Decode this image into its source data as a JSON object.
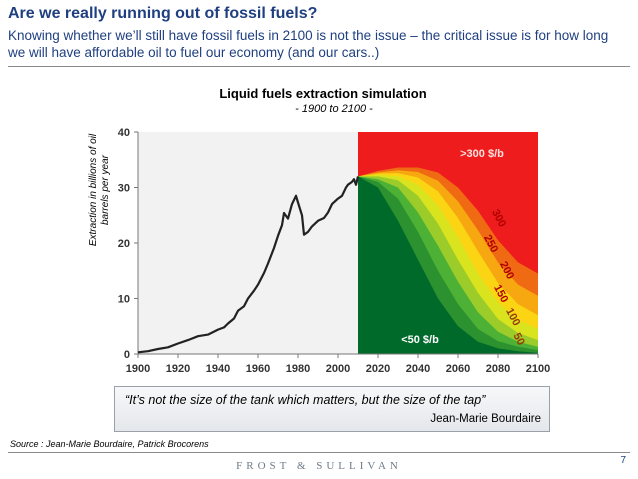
{
  "slide": {
    "title": "Are we really running out of fossil fuels?",
    "subtitle": "Knowing whether we’ll still have fossil fuels in 2100 is not the issue – the critical issue is for how long we will have affordable oil to fuel our economy (and our cars..)",
    "source": "Source : Jean-Marie Bourdaire, Patrick Brocorens",
    "footer_logo": "FROST & SULLIVAN",
    "page_number": "7"
  },
  "quote": {
    "text": "“It’s not the size of the tank which matters, but the size of the tap”",
    "author": "Jean-Marie Bourdaire"
  },
  "chart_data": {
    "type": "area",
    "title": "Liquid fuels extraction simulation",
    "subtitle": "- 1900 to 2100 -",
    "ylabel": "Extraction in billions of oil barrels per year",
    "xlim": [
      1900,
      2100
    ],
    "ylim": [
      0,
      40
    ],
    "x_ticks": [
      1900,
      1920,
      1940,
      1960,
      1980,
      2000,
      2020,
      2040,
      2060,
      2080,
      2100
    ],
    "y_ticks": [
      0,
      10,
      20,
      30,
      40
    ],
    "historical": {
      "x": [
        1900,
        1905,
        1910,
        1915,
        1920,
        1925,
        1930,
        1935,
        1940,
        1943,
        1945,
        1948,
        1950,
        1953,
        1955,
        1958,
        1960,
        1963,
        1965,
        1968,
        1970,
        1972,
        1973,
        1975,
        1977,
        1979,
        1980,
        1982,
        1983,
        1985,
        1987,
        1990,
        1993,
        1995,
        1997,
        2000,
        2002,
        2004,
        2005,
        2007,
        2008,
        2009,
        2010
      ],
      "y": [
        0.3,
        0.5,
        0.9,
        1.2,
        1.9,
        2.5,
        3.2,
        3.5,
        4.4,
        4.8,
        5.5,
        6.4,
        7.8,
        8.6,
        10.0,
        11.4,
        12.5,
        14.6,
        16.3,
        19.1,
        21.3,
        23.2,
        25.4,
        24.4,
        27.0,
        28.5,
        27.3,
        25.0,
        21.5,
        22.0,
        23.0,
        24.0,
        24.5,
        25.5,
        27.0,
        28.0,
        28.5,
        30.0,
        30.5,
        31.0,
        31.5,
        30.5,
        32.0
      ]
    },
    "scenario_start": 2010,
    "price_bands": [
      {
        "label": "< 50 $/b",
        "color": "#006a2a",
        "y": [
          32,
          30,
          24,
          17,
          10,
          5,
          2.2,
          1.0,
          0.5,
          0.2
        ]
      },
      {
        "label": "",
        "color": "#2c912f",
        "y": [
          32,
          31,
          28,
          22,
          15,
          9,
          4.5,
          2.3,
          1.3,
          0.7
        ]
      },
      {
        "label": "50",
        "color": "#4cb134",
        "y": [
          32,
          31.5,
          30,
          25.5,
          19.5,
          13,
          7.5,
          4.0,
          2.2,
          1.3
        ]
      },
      {
        "label": "100",
        "color": "#9ccc2a",
        "y": [
          32,
          32,
          31.3,
          28.5,
          23.5,
          17,
          11,
          6.3,
          3.8,
          2.5
        ]
      },
      {
        "label": "150",
        "color": "#d9e41e",
        "y": [
          32,
          32.3,
          32,
          30.5,
          26.8,
          21,
          14.5,
          9.3,
          6.2,
          4.5
        ]
      },
      {
        "label": "200",
        "color": "#fbd514",
        "y": [
          32,
          32.5,
          32.6,
          31.8,
          29.3,
          24.5,
          18.5,
          12.8,
          9.0,
          7.0
        ]
      },
      {
        "label": "250",
        "color": "#f7a70f",
        "y": [
          32,
          32.7,
          33.1,
          32.8,
          31.2,
          27.5,
          22.3,
          16.5,
          12.5,
          10.5
        ]
      },
      {
        "label": "300",
        "color": "#ef6a12",
        "y": [
          32,
          33,
          33.6,
          33.6,
          32.7,
          30,
          25.8,
          20.5,
          16.5,
          14.5
        ]
      },
      {
        "label": ">300 $/b",
        "color": "#ee1c1c",
        "y": [
          40,
          40,
          40,
          40,
          40,
          40,
          40,
          40,
          40,
          40
        ]
      }
    ],
    "band_x": [
      2010,
      2020,
      2030,
      2040,
      2050,
      2060,
      2070,
      2080,
      2090,
      2100
    ],
    "legend": [
      "<50 $/b",
      "50",
      "100",
      "150",
      "200",
      "250",
      "300",
      ">300 $/b"
    ]
  }
}
